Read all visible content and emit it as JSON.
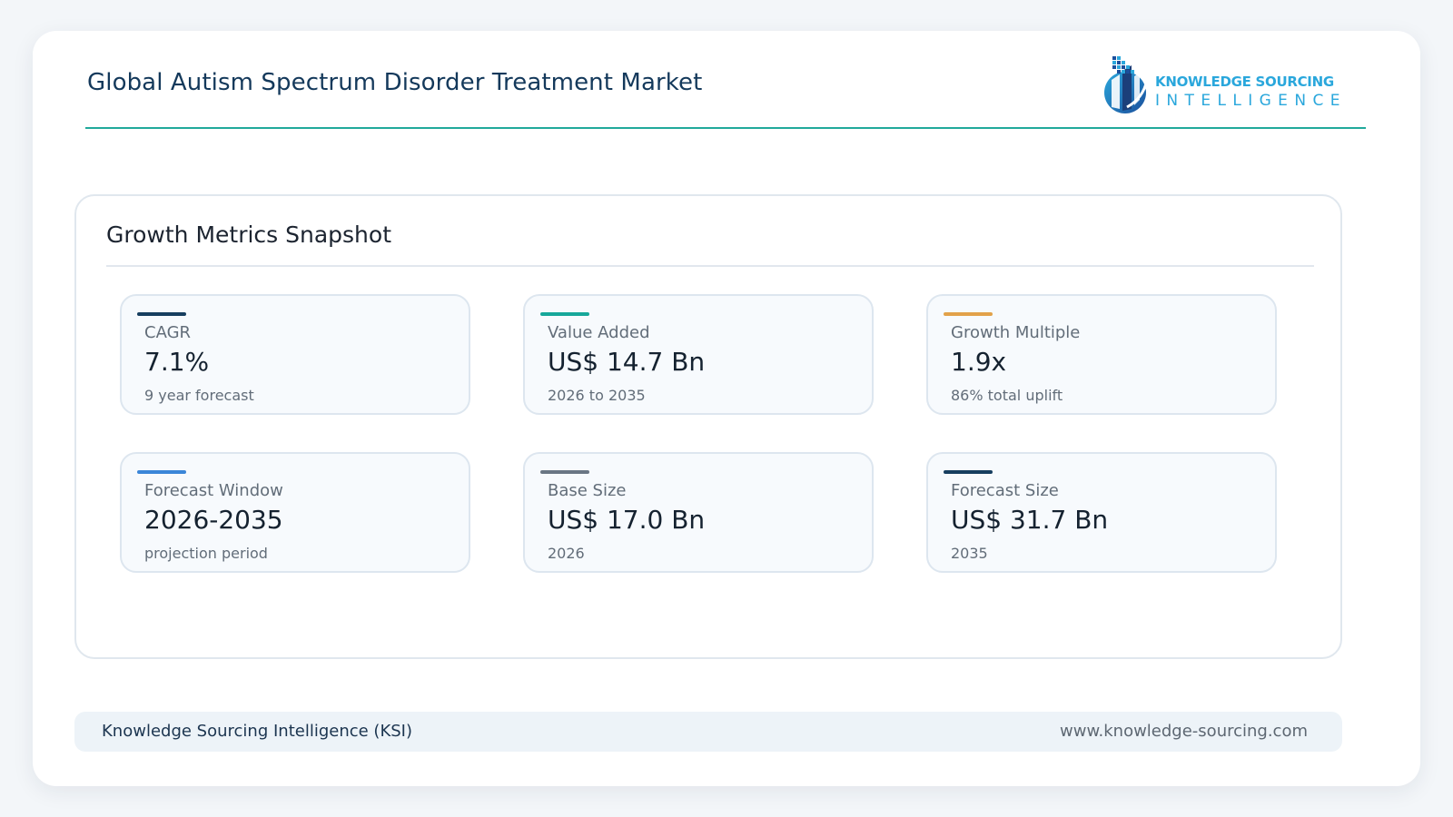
{
  "header": {
    "title": "Global Autism Spectrum Disorder Treatment Market",
    "logo": {
      "line1": "KNOWLEDGE SOURCING",
      "line2": "INTELLIGENCE",
      "icon": "building-globe-logo-icon"
    }
  },
  "panel": {
    "title": "Growth Metrics Snapshot",
    "metrics": [
      {
        "label": "CAGR",
        "value": "7.1%",
        "sub": "9 year forecast",
        "accent": "#173e5f"
      },
      {
        "label": "Value Added",
        "value": "US$ 14.7 Bn",
        "sub": "2026 to 2035",
        "accent": "#17a89a"
      },
      {
        "label": "Growth Multiple",
        "value": "1.9x",
        "sub": "86% total uplift",
        "accent": "#e2a24a"
      },
      {
        "label": "Forecast Window",
        "value": "2026-2035",
        "sub": "projection period",
        "accent": "#3b86d8"
      },
      {
        "label": "Base Size",
        "value": "US$ 17.0 Bn",
        "sub": "2026",
        "accent": "#6a7684"
      },
      {
        "label": "Forecast Size",
        "value": "US$ 31.7 Bn",
        "sub": "2035",
        "accent": "#173e5f"
      }
    ]
  },
  "footer": {
    "left": "Knowledge Sourcing Intelligence (KSI)",
    "right": "www.knowledge-sourcing.com"
  },
  "colors": {
    "header_rule": "#20a99b",
    "brand": "#2aa7dc",
    "title_text": "#14395b"
  }
}
